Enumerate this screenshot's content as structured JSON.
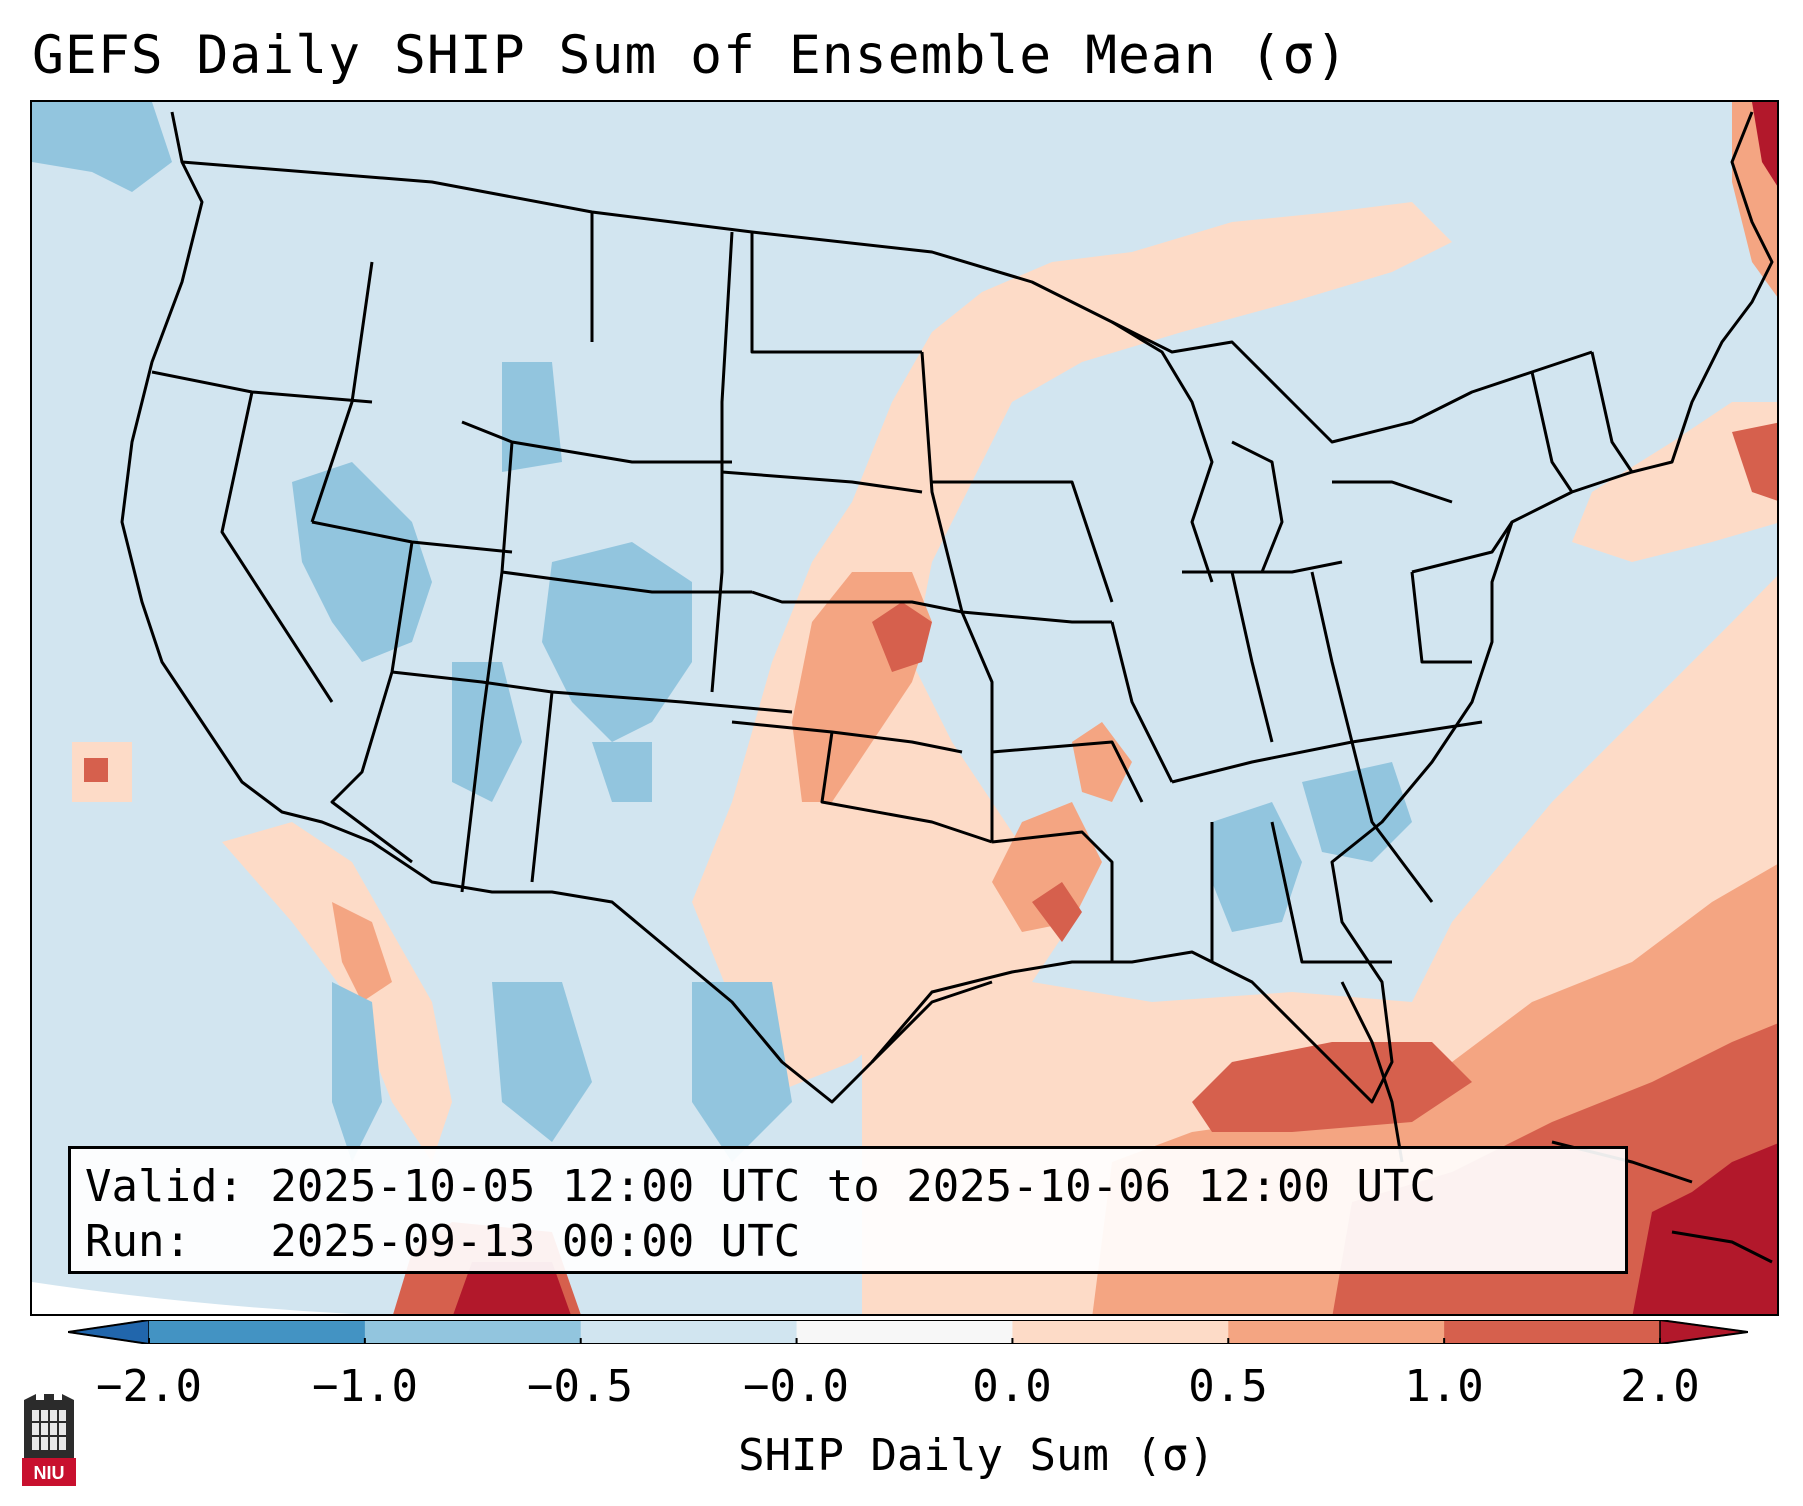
{
  "title": "GEFS Daily SHIP Sum of Ensemble Mean (σ)",
  "info": {
    "valid_line": "Valid: 2025-10-05 12:00 UTC to 2025-10-06 12:00 UTC",
    "run_line": "Run:   2025-09-13 00:00 UTC"
  },
  "colorbar": {
    "label": "SHIP Daily Sum (σ)",
    "ticks": [
      "−2.0",
      "−1.0",
      "−0.5",
      "−0.0",
      "0.0",
      "0.5",
      "1.0",
      "2.0"
    ],
    "colors": [
      "#4393c3",
      "#92c5de",
      "#d1e5f0",
      "#f7f7f7",
      "#fddbc7",
      "#f4a582",
      "#d6604d"
    ],
    "extend_low_color": "#2166ac",
    "extend_high_color": "#b2182b"
  },
  "map_colors": {
    "neutral_blue": "#d2e5f0",
    "blue_mid": "#92c5de",
    "salmon_light": "#fddbc7",
    "salmon_mid": "#f4a582",
    "red_mid": "#d6604d",
    "red_dark": "#b2182b",
    "outside_projection": "#ffffff"
  },
  "logo": {
    "text": "NIU"
  }
}
